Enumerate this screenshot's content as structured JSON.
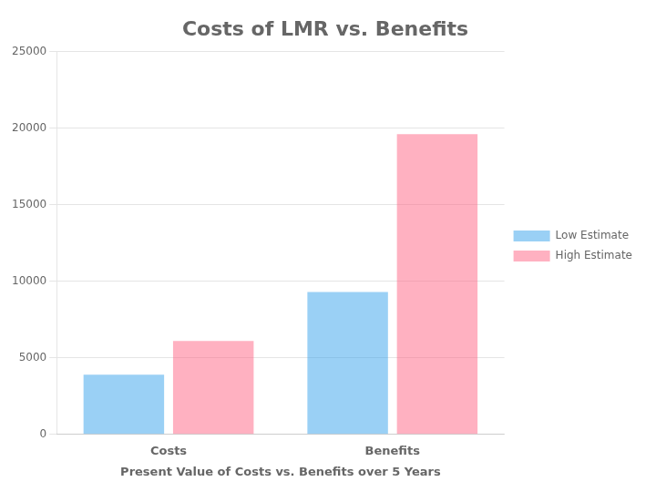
{
  "chart_data": {
    "type": "bar",
    "title": "Costs of LMR vs. Benefits",
    "xlabel": "Present Value of Costs vs. Benefits over 5 Years",
    "categories": [
      "Costs",
      "Benefits"
    ],
    "series": [
      {
        "name": "Low Estimate",
        "values": [
          3900,
          9300
        ]
      },
      {
        "name": "High Estimate",
        "values": [
          6100,
          19600
        ]
      }
    ],
    "ylim": [
      0,
      25000
    ],
    "yticks": [
      0,
      5000,
      10000,
      15000,
      20000,
      25000
    ],
    "grid": true,
    "legend": "right"
  }
}
